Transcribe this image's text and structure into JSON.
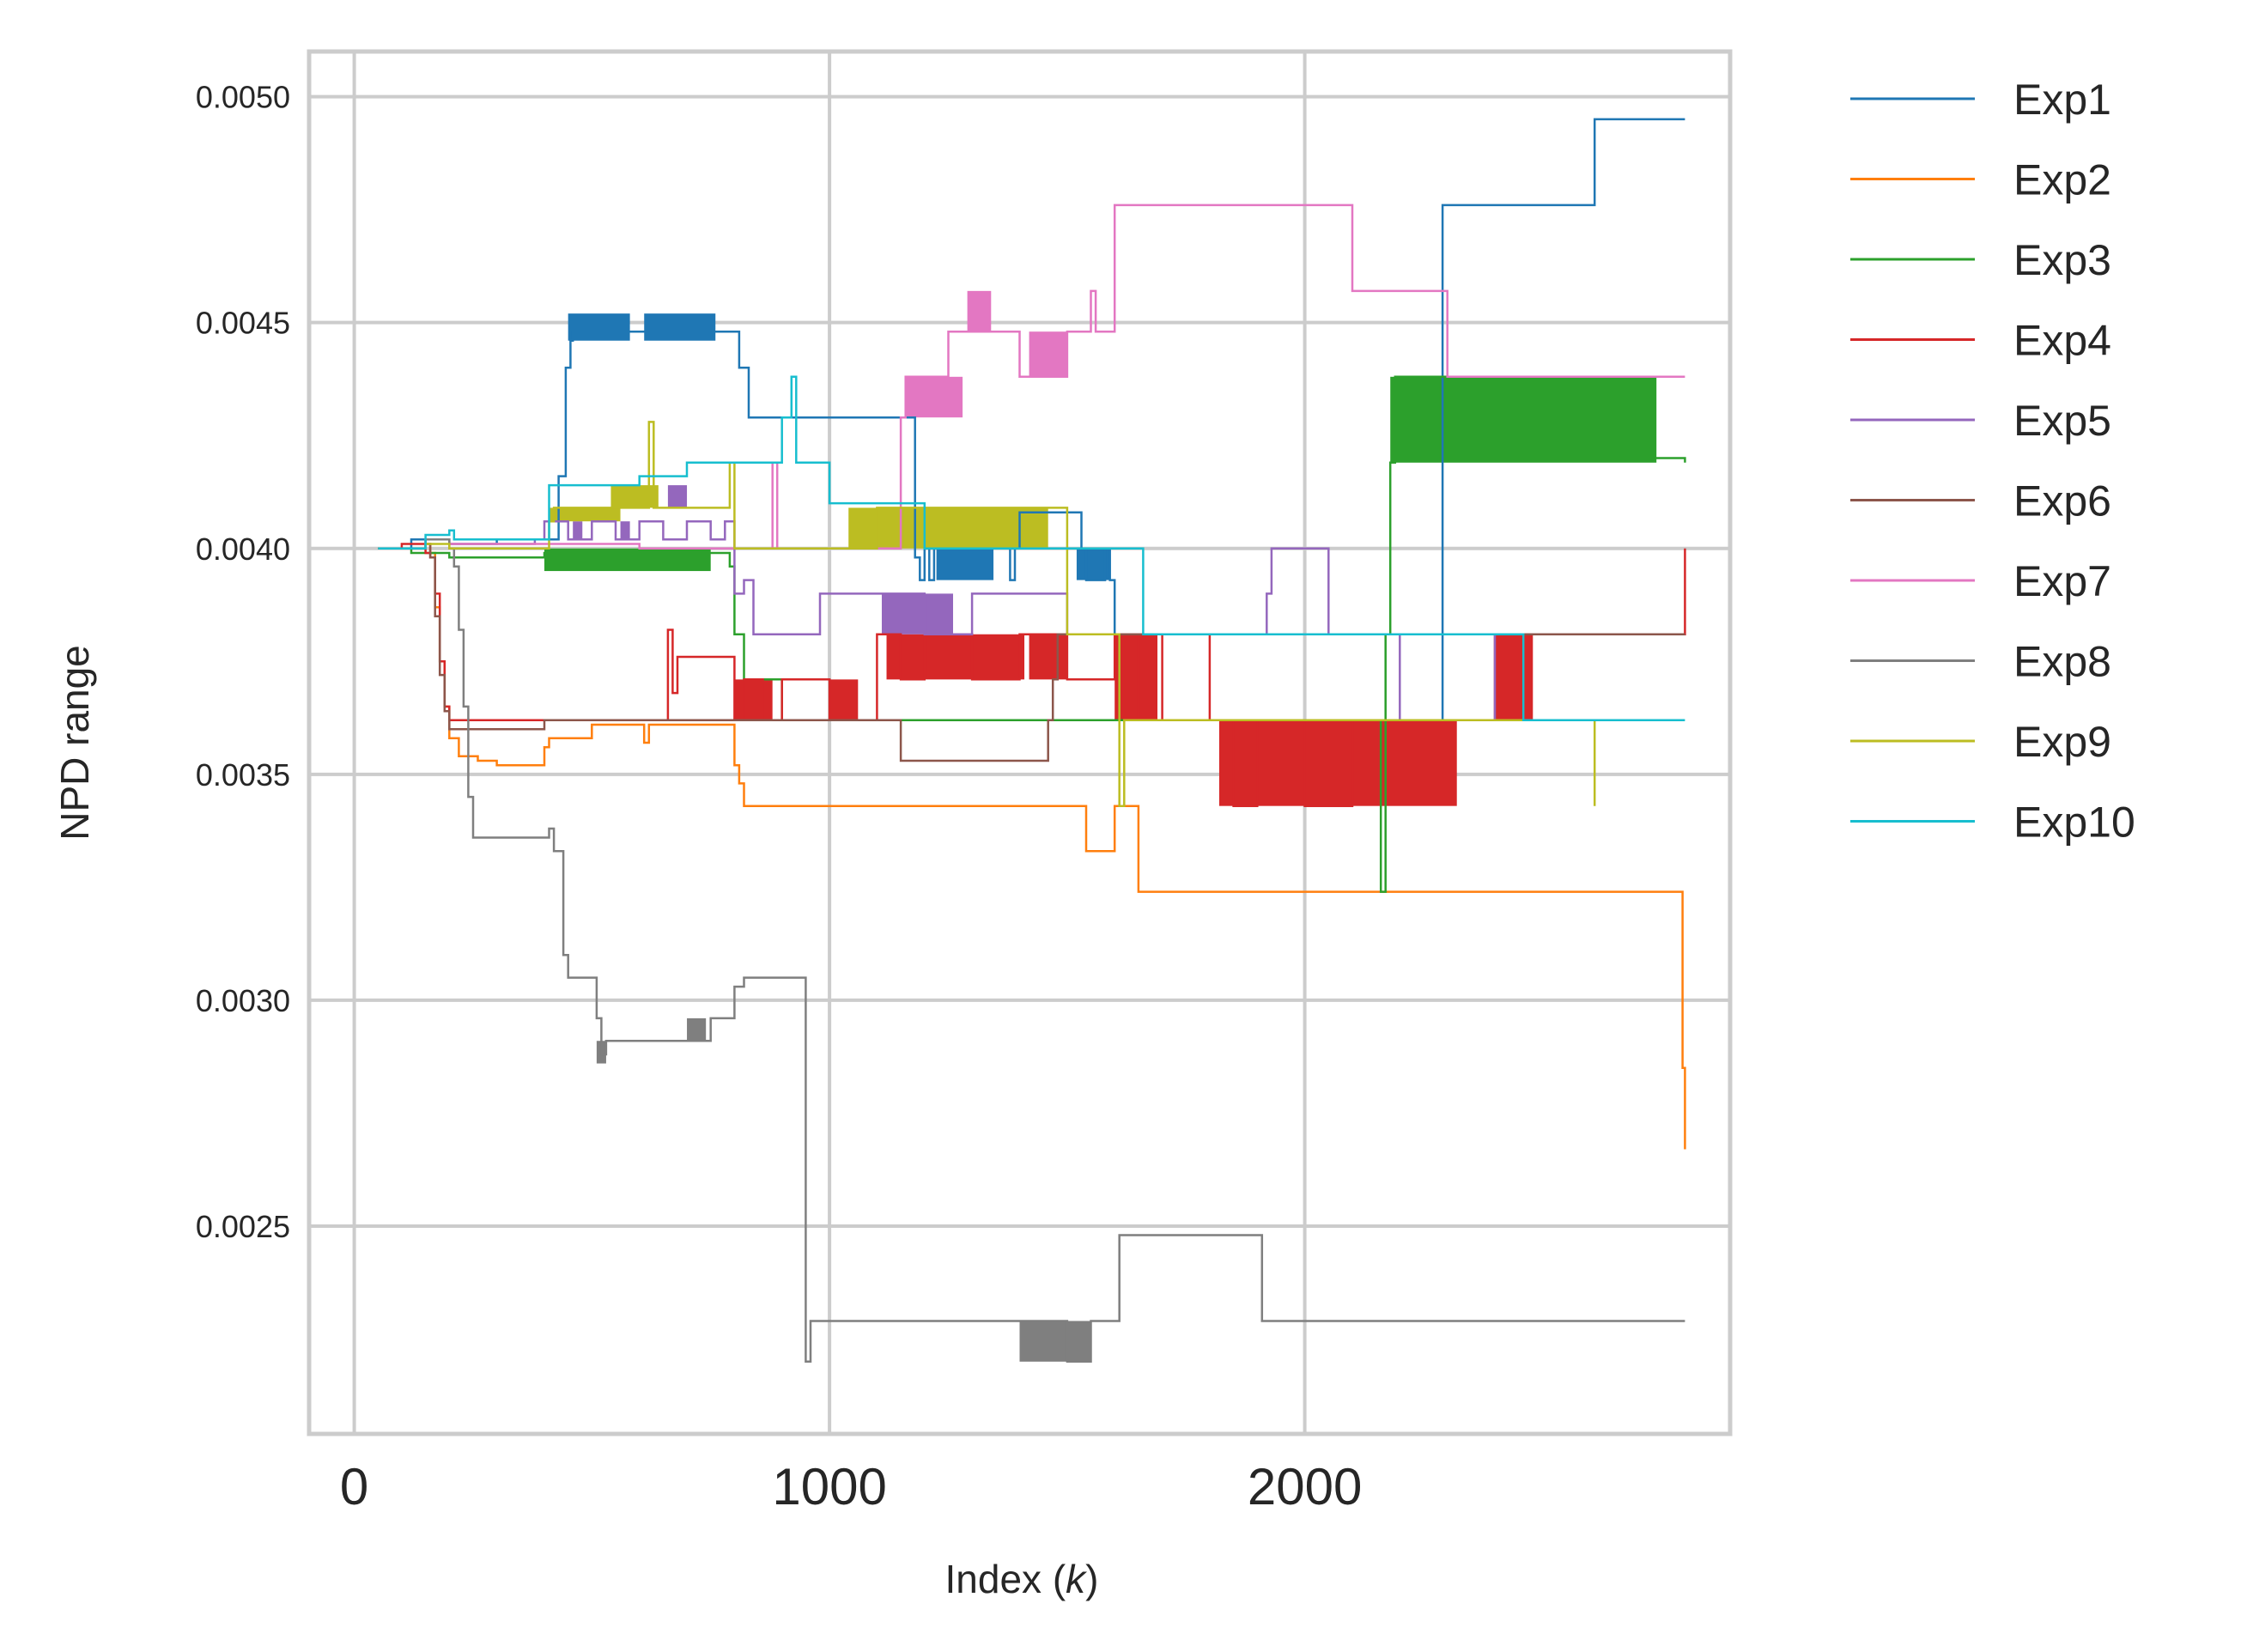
{
  "chart_data": {
    "type": "line",
    "title": "",
    "xlabel": "Index (",
    "xlabel_var": "k",
    "xlabel_close": ")",
    "ylabel": "NPD range",
    "xlim": [
      -95,
      2895
    ],
    "ylim": [
      0.00204,
      0.0051
    ],
    "xticks": [
      0,
      1000,
      2000
    ],
    "xtick_labels": [
      "0",
      "1000",
      "2000"
    ],
    "yticks": [
      0.0025,
      0.003,
      0.0035,
      0.004,
      0.0045,
      0.005
    ],
    "ytick_labels": [
      "0.0025",
      "0.0030",
      "0.0035",
      "0.0040",
      "0.0045",
      "0.0050"
    ],
    "grid": true,
    "legend_position": "outside-right",
    "series": [
      {
        "name": "Exp1",
        "color": "#1f77b4",
        "x": [
          50,
          120,
          200,
          300,
          400,
          430,
          445,
          455,
          460,
          800,
          810,
          830,
          1170,
          1180,
          1190,
          1200,
          1210,
          1220,
          1370,
          1380,
          1390,
          1400,
          1520,
          1530,
          1540,
          1580,
          1590,
          1600,
          1610,
          2080,
          2270,
          2290,
          2300,
          2600,
          2610,
          2800
        ],
        "y": [
          0.004,
          0.00402,
          0.00401,
          0.00402,
          0.00402,
          0.00416,
          0.0044,
          0.00446,
          0.00448,
          0.00448,
          0.0044,
          0.00429,
          0.00429,
          0.00398,
          0.00393,
          0.004,
          0.00393,
          0.004,
          0.004,
          0.00393,
          0.004,
          0.00408,
          0.00408,
          0.004,
          0.00393,
          0.004,
          0.00393,
          0.00381,
          0.00362,
          0.00362,
          0.00362,
          0.00476,
          0.00476,
          0.00476,
          0.00495,
          0.00495
        ]
      },
      {
        "name": "Exp2",
        "color": "#ff7f0e",
        "x": [
          50,
          150,
          160,
          170,
          180,
          190,
          200,
          220,
          250,
          260,
          290,
          300,
          400,
          410,
          450,
          500,
          600,
          610,
          620,
          780,
          800,
          810,
          820,
          1000,
          1530,
          1540,
          1590,
          1600,
          1610,
          1640,
          1650,
          1700,
          2200,
          2600,
          2790,
          2795,
          2800
        ],
        "y": [
          0.004,
          0.00401,
          0.00399,
          0.00387,
          0.00375,
          0.00365,
          0.00358,
          0.00354,
          0.00354,
          0.00353,
          0.00353,
          0.00352,
          0.00356,
          0.00358,
          0.00358,
          0.00361,
          0.00361,
          0.00357,
          0.00361,
          0.00361,
          0.00352,
          0.00348,
          0.00343,
          0.00343,
          0.00343,
          0.00333,
          0.00333,
          0.00343,
          0.00343,
          0.00343,
          0.00324,
          0.00324,
          0.00324,
          0.00324,
          0.00324,
          0.00285,
          0.00267
        ]
      },
      {
        "name": "Exp3",
        "color": "#2ca02c",
        "x": [
          50,
          120,
          200,
          300,
          400,
          780,
          790,
          800,
          820,
          900,
          1200,
          1600,
          2100,
          2150,
          2160,
          2170,
          2180,
          2190,
          2500,
          2800
        ],
        "y": [
          0.004,
          0.00399,
          0.00398,
          0.00398,
          0.00399,
          0.00399,
          0.00396,
          0.00381,
          0.00371,
          0.00362,
          0.00362,
          0.00362,
          0.00362,
          0.00362,
          0.00324,
          0.00381,
          0.00419,
          0.00438,
          0.0042,
          0.00419
        ]
      },
      {
        "name": "Exp4",
        "color": "#d62728",
        "x": [
          50,
          100,
          150,
          160,
          170,
          180,
          190,
          200,
          250,
          300,
          400,
          600,
          650,
          660,
          670,
          680,
          700,
          780,
          800,
          820,
          860,
          900,
          1000,
          1100,
          1150,
          1200,
          1300,
          1400,
          1500,
          1600,
          1650,
          1700,
          1800,
          1850,
          1900,
          2000,
          2100,
          2300,
          2400,
          2500,
          2750,
          2800
        ],
        "y": [
          0.004,
          0.00401,
          0.00399,
          0.00398,
          0.0039,
          0.00375,
          0.00365,
          0.00362,
          0.00362,
          0.00362,
          0.00362,
          0.00362,
          0.00362,
          0.00382,
          0.00368,
          0.00376,
          0.00376,
          0.00376,
          0.00362,
          0.00371,
          0.00362,
          0.00371,
          0.00362,
          0.00381,
          0.00371,
          0.00381,
          0.00371,
          0.00381,
          0.00371,
          0.00381,
          0.00362,
          0.00381,
          0.00362,
          0.00343,
          0.00362,
          0.00343,
          0.00362,
          0.00362,
          0.00381,
          0.00381,
          0.00381,
          0.004
        ]
      },
      {
        "name": "Exp5",
        "color": "#9467bd",
        "x": [
          50,
          150,
          200,
          300,
          380,
          400,
          450,
          500,
          550,
          600,
          650,
          700,
          750,
          780,
          800,
          820,
          840,
          860,
          950,
          980,
          1000,
          1100,
          1200,
          1300,
          1400,
          1500,
          1600,
          1700,
          1800,
          1900,
          1910,
          1920,
          1930,
          1940,
          2040,
          2050,
          2100,
          2200,
          2300,
          2400,
          2500,
          2800
        ],
        "y": [
          0.004,
          0.00402,
          0.00401,
          0.00401,
          0.00402,
          0.00406,
          0.00402,
          0.00406,
          0.00402,
          0.00406,
          0.00402,
          0.00406,
          0.00402,
          0.00406,
          0.0039,
          0.00393,
          0.00381,
          0.00381,
          0.00381,
          0.0039,
          0.0039,
          0.0039,
          0.00381,
          0.0039,
          0.0039,
          0.00381,
          0.00381,
          0.00381,
          0.00381,
          0.00381,
          0.00381,
          0.0039,
          0.004,
          0.004,
          0.004,
          0.00381,
          0.00381,
          0.00362,
          0.00362,
          0.00381,
          0.00381,
          0.00381
        ]
      },
      {
        "name": "Exp6",
        "color": "#8c564b",
        "x": [
          50,
          150,
          160,
          170,
          180,
          190,
          200,
          220,
          300,
          400,
          600,
          800,
          1100,
          1150,
          1160,
          1170,
          1200,
          1300,
          1400,
          1450,
          1460,
          1470,
          1480,
          1600,
          2800
        ],
        "y": [
          0.004,
          0.00401,
          0.00398,
          0.00385,
          0.00372,
          0.00364,
          0.0036,
          0.0036,
          0.0036,
          0.00362,
          0.00362,
          0.00362,
          0.00362,
          0.00353,
          0.00353,
          0.00353,
          0.00353,
          0.00353,
          0.00353,
          0.00353,
          0.00362,
          0.00371,
          0.00381,
          0.00381,
          0.00381
        ]
      },
      {
        "name": "Exp7",
        "color": "#e377c2",
        "x": [
          50,
          150,
          200,
          300,
          400,
          600,
          800,
          880,
          890,
          900,
          1000,
          1100,
          1150,
          1160,
          1170,
          1200,
          1250,
          1300,
          1350,
          1400,
          1450,
          1500,
          1550,
          1560,
          1570,
          1600,
          1650,
          1700,
          1800,
          1900,
          2100,
          2200,
          2300,
          2400,
          2500,
          2800
        ],
        "y": [
          0.004,
          0.00402,
          0.00401,
          0.00401,
          0.00401,
          0.004,
          0.004,
          0.00419,
          0.004,
          0.004,
          0.004,
          0.004,
          0.00429,
          0.00438,
          0.00438,
          0.00438,
          0.00448,
          0.00448,
          0.00448,
          0.00438,
          0.00438,
          0.00448,
          0.00457,
          0.00448,
          0.00448,
          0.00476,
          0.00476,
          0.00476,
          0.00476,
          0.00476,
          0.00457,
          0.00457,
          0.00438,
          0.00438,
          0.00438,
          0.00438
        ]
      },
      {
        "name": "Exp8",
        "color": "#7f7f7f",
        "x": [
          50,
          150,
          200,
          210,
          220,
          230,
          240,
          250,
          300,
          350,
          400,
          410,
          420,
          430,
          440,
          450,
          480,
          500,
          510,
          520,
          530,
          550,
          600,
          650,
          700,
          750,
          780,
          800,
          820,
          850,
          900,
          940,
          950,
          960,
          1000,
          1100,
          1200,
          1300,
          1400,
          1500,
          1550,
          1600,
          1610,
          1700,
          1800,
          1900,
          1910,
          2000,
          2200,
          2500,
          2800
        ],
        "y": [
          0.004,
          0.00402,
          0.004,
          0.00396,
          0.00382,
          0.00365,
          0.00345,
          0.00336,
          0.00336,
          0.00336,
          0.00336,
          0.00338,
          0.00333,
          0.00333,
          0.0031,
          0.00305,
          0.00305,
          0.00305,
          0.00296,
          0.00288,
          0.00291,
          0.00291,
          0.00291,
          0.00291,
          0.00291,
          0.00296,
          0.00296,
          0.00303,
          0.00305,
          0.00305,
          0.00305,
          0.00305,
          0.0022,
          0.00229,
          0.00229,
          0.00229,
          0.00229,
          0.00229,
          0.00229,
          0.0022,
          0.00229,
          0.00229,
          0.00248,
          0.00248,
          0.00248,
          0.00248,
          0.00229,
          0.00229,
          0.00229,
          0.00229,
          0.00229
        ]
      },
      {
        "name": "Exp9",
        "color": "#bcbd22",
        "x": [
          50,
          150,
          200,
          300,
          400,
          410,
          420,
          500,
          600,
          620,
          630,
          640,
          700,
          780,
          790,
          800,
          880,
          950,
          1000,
          1050,
          1100,
          1200,
          1300,
          1400,
          1500,
          1550,
          1600,
          1610,
          1620,
          1700,
          2000,
          2200,
          2500,
          2600,
          2610
        ],
        "y": [
          0.004,
          0.00401,
          0.004,
          0.004,
          0.004,
          0.00406,
          0.00409,
          0.00409,
          0.00409,
          0.00428,
          0.00409,
          0.00409,
          0.00409,
          0.00409,
          0.00419,
          0.004,
          0.004,
          0.004,
          0.004,
          0.004,
          0.00409,
          0.00409,
          0.00409,
          0.00409,
          0.00381,
          0.00381,
          0.00381,
          0.00343,
          0.00362,
          0.00362,
          0.00362,
          0.00362,
          0.00362,
          0.00362,
          0.00343
        ]
      },
      {
        "name": "Exp10",
        "color": "#17becf",
        "x": [
          50,
          150,
          200,
          210,
          400,
          410,
          480,
          500,
          550,
          600,
          700,
          800,
          880,
          900,
          920,
          930,
          950,
          990,
          1000,
          1100,
          1200,
          1300,
          1400,
          1500,
          1600,
          1650,
          1660,
          1700,
          1900,
          2100,
          2300,
          2400,
          2450,
          2460,
          2470,
          2800
        ],
        "y": [
          0.004,
          0.00403,
          0.00404,
          0.00402,
          0.00402,
          0.00414,
          0.00414,
          0.00414,
          0.00414,
          0.00416,
          0.00419,
          0.00419,
          0.00419,
          0.00429,
          0.00438,
          0.00419,
          0.00419,
          0.00419,
          0.0041,
          0.0041,
          0.004,
          0.004,
          0.004,
          0.004,
          0.004,
          0.004,
          0.00381,
          0.00381,
          0.00381,
          0.00381,
          0.00381,
          0.00381,
          0.00381,
          0.00362,
          0.00362,
          0.00362
        ]
      }
    ],
    "bands": [
      {
        "series": "Exp1",
        "x0": 450,
        "x1": 580,
        "y0": 0.00446,
        "y1": 0.00452
      },
      {
        "series": "Exp1",
        "x0": 610,
        "x1": 760,
        "y0": 0.00446,
        "y1": 0.00452
      },
      {
        "series": "Exp1",
        "x0": 1225,
        "x1": 1345,
        "y0": 0.00393,
        "y1": 0.004
      },
      {
        "series": "Exp1",
        "x0": 1400,
        "x1": 1420,
        "y0": 0.004,
        "y1": 0.00408
      },
      {
        "series": "Exp1",
        "x0": 1520,
        "x1": 1590,
        "y0": 0.00393,
        "y1": 0.004
      },
      {
        "series": "Exp3",
        "x0": 400,
        "x1": 750,
        "y0": 0.00395,
        "y1": 0.004
      },
      {
        "series": "Exp3",
        "x0": 2180,
        "x1": 2740,
        "y0": 0.00419,
        "y1": 0.00438
      },
      {
        "series": "Exp4",
        "x0": 800,
        "x1": 880,
        "y0": 0.00362,
        "y1": 0.00371
      },
      {
        "series": "Exp4",
        "x0": 1000,
        "x1": 1060,
        "y0": 0.00362,
        "y1": 0.00371
      },
      {
        "series": "Exp4",
        "x0": 1120,
        "x1": 1410,
        "y0": 0.00371,
        "y1": 0.00381
      },
      {
        "series": "Exp4",
        "x0": 1420,
        "x1": 1500,
        "y0": 0.00371,
        "y1": 0.00381
      },
      {
        "series": "Exp4",
        "x0": 1600,
        "x1": 1690,
        "y0": 0.00362,
        "y1": 0.00381
      },
      {
        "series": "Exp4",
        "x0": 1820,
        "x1": 2320,
        "y0": 0.00343,
        "y1": 0.00362
      },
      {
        "series": "Exp4",
        "x0": 2400,
        "x1": 2480,
        "y0": 0.00362,
        "y1": 0.00381
      },
      {
        "series": "Exp5",
        "x0": 460,
        "x1": 480,
        "y0": 0.00402,
        "y1": 0.00406
      },
      {
        "series": "Exp5",
        "x0": 560,
        "x1": 580,
        "y0": 0.00402,
        "y1": 0.00406
      },
      {
        "series": "Exp5",
        "x0": 660,
        "x1": 700,
        "y0": 0.00409,
        "y1": 0.00414
      },
      {
        "series": "Exp5",
        "x0": 1110,
        "x1": 1260,
        "y0": 0.00381,
        "y1": 0.0039
      },
      {
        "series": "Exp7",
        "x0": 1160,
        "x1": 1280,
        "y0": 0.00429,
        "y1": 0.00438
      },
      {
        "series": "Exp7",
        "x0": 1290,
        "x1": 1340,
        "y0": 0.00448,
        "y1": 0.00457
      },
      {
        "series": "Exp7",
        "x0": 1420,
        "x1": 1500,
        "y0": 0.00438,
        "y1": 0.00448
      },
      {
        "series": "Exp8",
        "x0": 510,
        "x1": 530,
        "y0": 0.00286,
        "y1": 0.00291
      },
      {
        "series": "Exp8",
        "x0": 700,
        "x1": 740,
        "y0": 0.00291,
        "y1": 0.00296
      },
      {
        "series": "Exp8",
        "x0": 1400,
        "x1": 1550,
        "y0": 0.0022,
        "y1": 0.00229
      },
      {
        "series": "Exp9",
        "x0": 410,
        "x1": 560,
        "y0": 0.00406,
        "y1": 0.00409
      },
      {
        "series": "Exp9",
        "x0": 540,
        "x1": 640,
        "y0": 0.00409,
        "y1": 0.00414
      },
      {
        "series": "Exp9",
        "x0": 1040,
        "x1": 1460,
        "y0": 0.004,
        "y1": 0.00409
      }
    ]
  }
}
